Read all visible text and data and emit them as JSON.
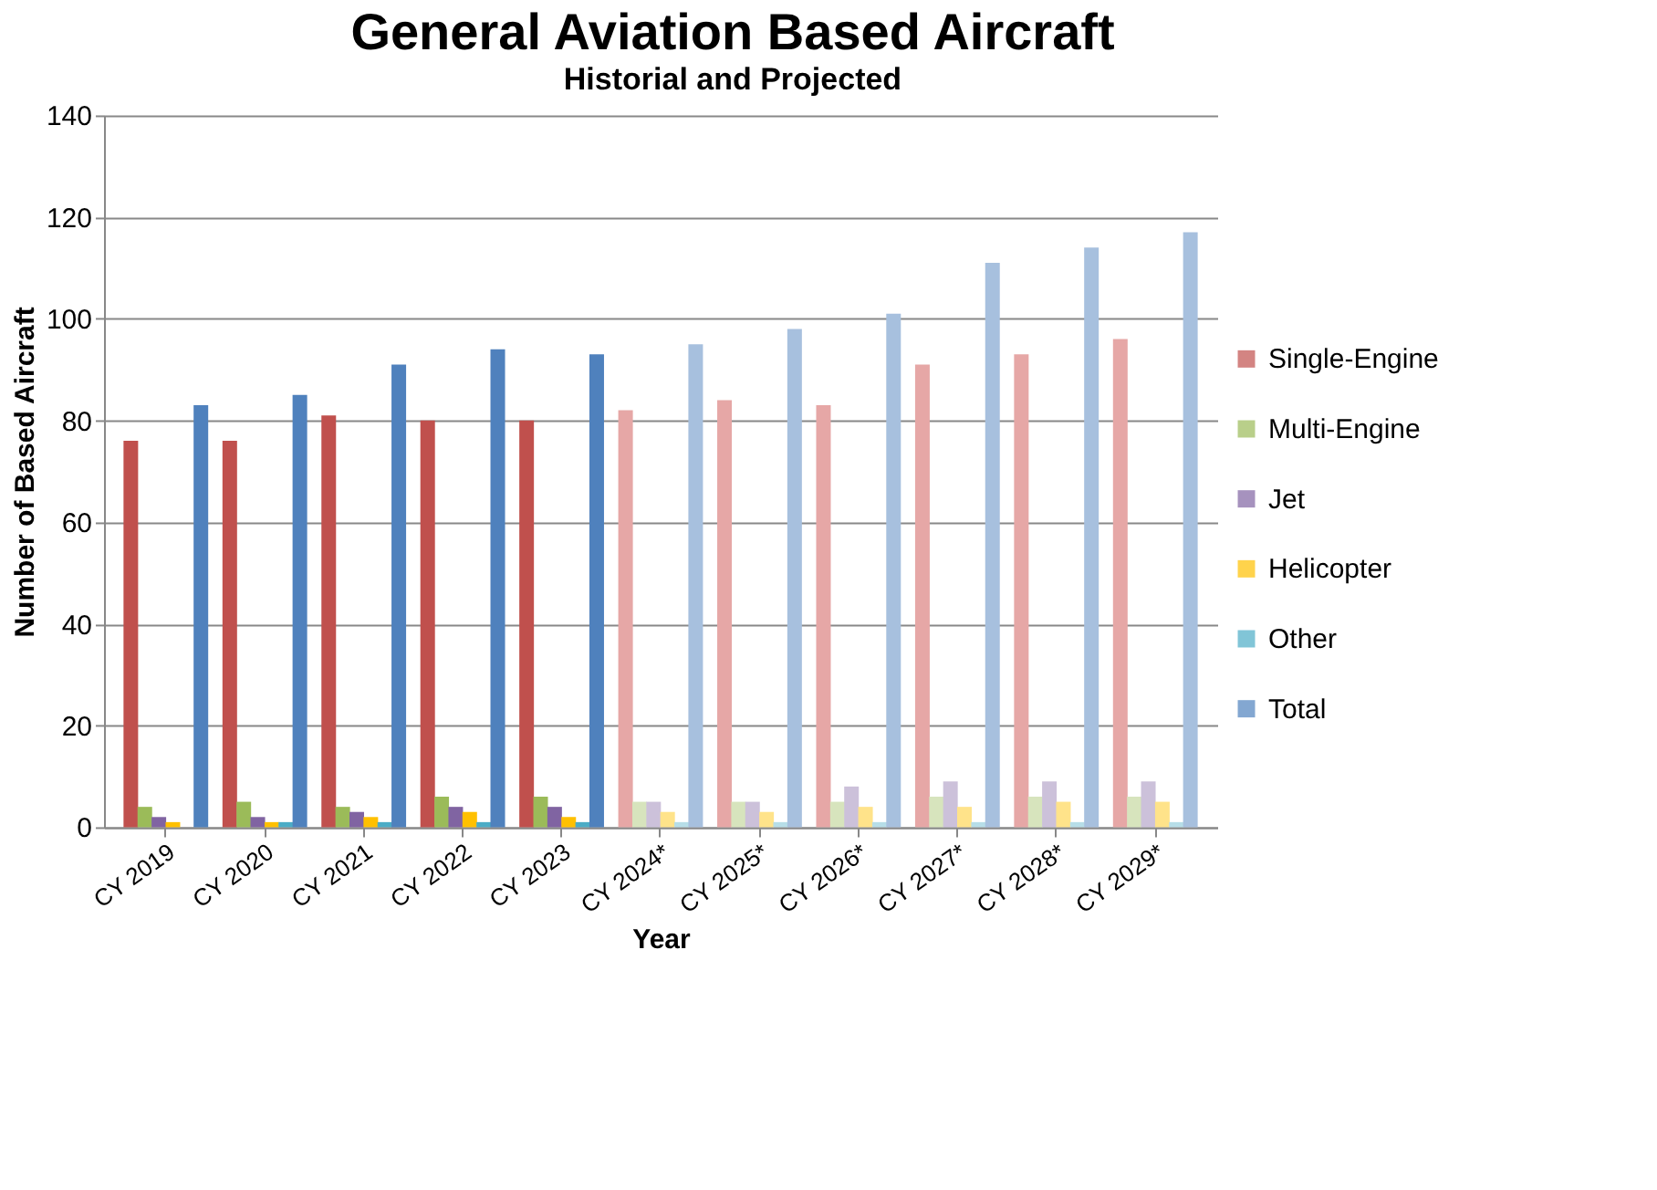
{
  "chart_data": {
    "type": "bar",
    "title": "General Aviation Based Aircraft",
    "subtitle": "Historial and Projected",
    "xlabel": "Year",
    "ylabel": "Number of Based Aircraft",
    "categories": [
      "CY 2019",
      "CY 2020",
      "CY 2021",
      "CY 2022",
      "CY 2023",
      "CY 2024*",
      "CY 2025*",
      "CY 2026*",
      "CY 2027*",
      "CY 2028*",
      "CY 2029*"
    ],
    "series": [
      {
        "name": "Single-Engine",
        "color": "#c0504d",
        "colors": [
          "#c0504d",
          "#c0504d",
          "#c0504d",
          "#c0504d",
          "#c0504d",
          "#e6a7a6",
          "#e6a7a6",
          "#e6a7a6",
          "#e6a7a6",
          "#e6a7a6",
          "#e6a7a6"
        ],
        "values": [
          76,
          76,
          81,
          80,
          80,
          82,
          84,
          83,
          91,
          93,
          96
        ]
      },
      {
        "name": "Multi-Engine",
        "color": "#9bbb59",
        "colors": [
          "#9bbb59",
          "#9bbb59",
          "#9bbb59",
          "#9bbb59",
          "#9bbb59",
          "#d7e4bd",
          "#d7e4bd",
          "#d7e4bd",
          "#d7e4bd",
          "#d7e4bd",
          "#d7e4bd"
        ],
        "values": [
          4,
          5,
          4,
          6,
          6,
          5,
          5,
          5,
          6,
          6,
          6
        ]
      },
      {
        "name": "Jet",
        "color": "#8064a2",
        "colors": [
          "#8064a2",
          "#8064a2",
          "#8064a2",
          "#8064a2",
          "#8064a2",
          "#ccc1da",
          "#ccc1da",
          "#ccc1da",
          "#ccc1da",
          "#ccc1da",
          "#ccc1da"
        ],
        "values": [
          2,
          2,
          3,
          4,
          4,
          5,
          5,
          8,
          9,
          9,
          9
        ]
      },
      {
        "name": "Helicopter",
        "color": "#ffc000",
        "colors": [
          "#ffc000",
          "#ffc000",
          "#ffc000",
          "#ffc000",
          "#ffc000",
          "#ffe38a",
          "#ffe38a",
          "#ffe38a",
          "#ffe38a",
          "#ffe38a",
          "#ffe38a"
        ],
        "values": [
          1,
          1,
          2,
          3,
          2,
          3,
          3,
          4,
          4,
          5,
          5
        ]
      },
      {
        "name": "Other",
        "color": "#4bacc6",
        "colors": [
          "#4bacc6",
          "#4bacc6",
          "#4bacc6",
          "#4bacc6",
          "#4bacc6",
          "#b7dee8",
          "#b7dee8",
          "#b7dee8",
          "#b7dee8",
          "#b7dee8",
          "#b7dee8"
        ],
        "values": [
          0,
          1,
          1,
          1,
          1,
          1,
          1,
          1,
          1,
          1,
          1
        ]
      },
      {
        "name": "Total",
        "color": "#4f81bd",
        "colors": [
          "#4f81bd",
          "#4f81bd",
          "#4f81bd",
          "#4f81bd",
          "#4f81bd",
          "#a7c0de",
          "#a7c0de",
          "#a7c0de",
          "#a7c0de",
          "#a7c0de",
          "#a7c0de"
        ],
        "values": [
          83,
          85,
          91,
          94,
          93,
          95,
          98,
          101,
          111,
          114,
          117
        ]
      }
    ],
    "ylim": [
      0,
      140
    ],
    "yticks": [
      0,
      20,
      40,
      60,
      80,
      100,
      120,
      140
    ],
    "grid": "y",
    "legend": "right"
  }
}
